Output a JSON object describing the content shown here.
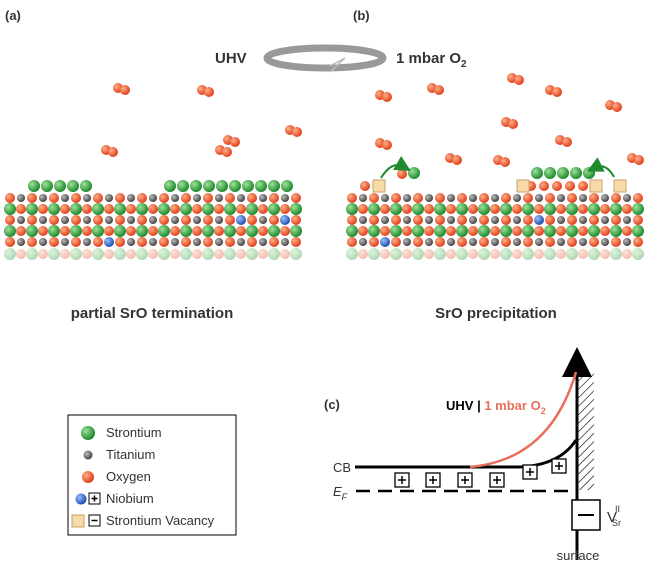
{
  "panels": {
    "a": {
      "label": "(a)",
      "caption": "partial SrO termination"
    },
    "b": {
      "label": "(b)",
      "caption": "SrO precipitation"
    },
    "c": {
      "label": "(c)"
    }
  },
  "arrow": {
    "left": "UHV",
    "right": {
      "text": "1 mbar O",
      "sub": "2"
    }
  },
  "band_diagram": {
    "legend_uhv": "UHV",
    "separator": "|",
    "legend_o2": {
      "text": "1 mbar O",
      "sub": "2"
    },
    "cb": "CB",
    "ef": {
      "text": "E",
      "sub": "F"
    },
    "vacancy": {
      "text": "V",
      "sub": "Sr",
      "sup": "II"
    },
    "surface": "surface"
  },
  "legend": {
    "items": [
      "Strontium",
      "Titanium",
      "Oxygen",
      "Niobium",
      "Strontium Vacancy"
    ]
  }
}
